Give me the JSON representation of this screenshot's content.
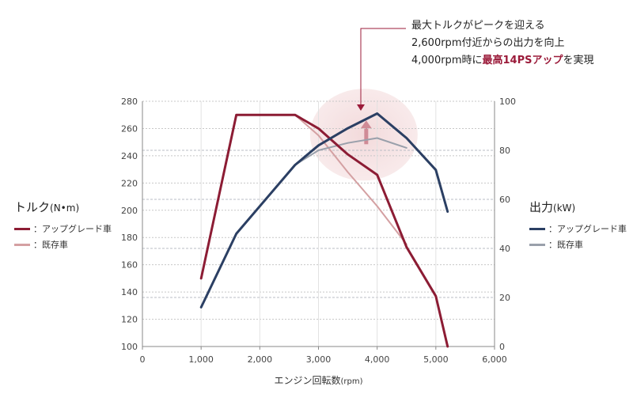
{
  "chart_data": {
    "type": "line",
    "xlabel": "エンジン回転数",
    "xlabel_unit": "(rpm)",
    "xlim": [
      0,
      6000
    ],
    "x_ticks": [
      "0",
      "1,000",
      "2,000",
      "3,000",
      "4,000",
      "5,000",
      "6,000"
    ],
    "y_left": {
      "title": "トルク",
      "unit": "(N•m)",
      "lim": [
        100,
        280
      ],
      "ticks": [
        "100",
        "120",
        "140",
        "160",
        "180",
        "200",
        "220",
        "240",
        "260",
        "280"
      ]
    },
    "y_right": {
      "title": "出力",
      "unit": "(kW)",
      "lim": [
        0,
        100
      ],
      "ticks": [
        "0",
        "20",
        "40",
        "60",
        "80",
        "100"
      ]
    },
    "grid": "dashed horizontal",
    "series": [
      {
        "name": "：アップグレード車",
        "group": "torque",
        "axis": "left",
        "color": "#8c1c34",
        "x": [
          1000,
          1600,
          2600,
          3000,
          3500,
          4000,
          4500,
          5000,
          5200
        ],
        "y": [
          150,
          270,
          270,
          260,
          241,
          226,
          173,
          137,
          100
        ]
      },
      {
        "name": "：既存車",
        "group": "torque",
        "axis": "left",
        "color": "#d4a0a2",
        "x": [
          2600,
          3000,
          3500,
          4000,
          4500
        ],
        "y": [
          270,
          255,
          228,
          203,
          175
        ]
      },
      {
        "name": "：アップグレード車",
        "group": "power",
        "axis": "right",
        "color": "#2b3f63",
        "x": [
          1000,
          1600,
          2600,
          3000,
          3500,
          4000,
          4500,
          5000,
          5200
        ],
        "y": [
          16,
          46,
          74,
          82,
          89,
          95,
          85,
          72,
          55
        ]
      },
      {
        "name": "：既存車",
        "group": "power",
        "axis": "right",
        "color": "#9aa0ab",
        "x": [
          2600,
          3000,
          3500,
          4000,
          4500
        ],
        "y": [
          74,
          80,
          83,
          85,
          81
        ]
      }
    ],
    "annotation": {
      "line1": "最大トルクがピークを迎える",
      "line2": "2,600rpm付近からの出力を向上",
      "line3_prefix": "4,000rpm時に",
      "line3_highlight": "最高14PSアップ",
      "line3_suffix": "を実現"
    },
    "highlight_x": 3800,
    "highlight_power": 87
  },
  "legend_torque": {
    "title": "トルク",
    "unit": "(N•m)",
    "upgrade": "：アップグレード車",
    "existing": "：既存車"
  },
  "legend_power": {
    "title": "出力",
    "unit": "(kW)",
    "upgrade": "：アップグレード車",
    "existing": "：既存車"
  }
}
